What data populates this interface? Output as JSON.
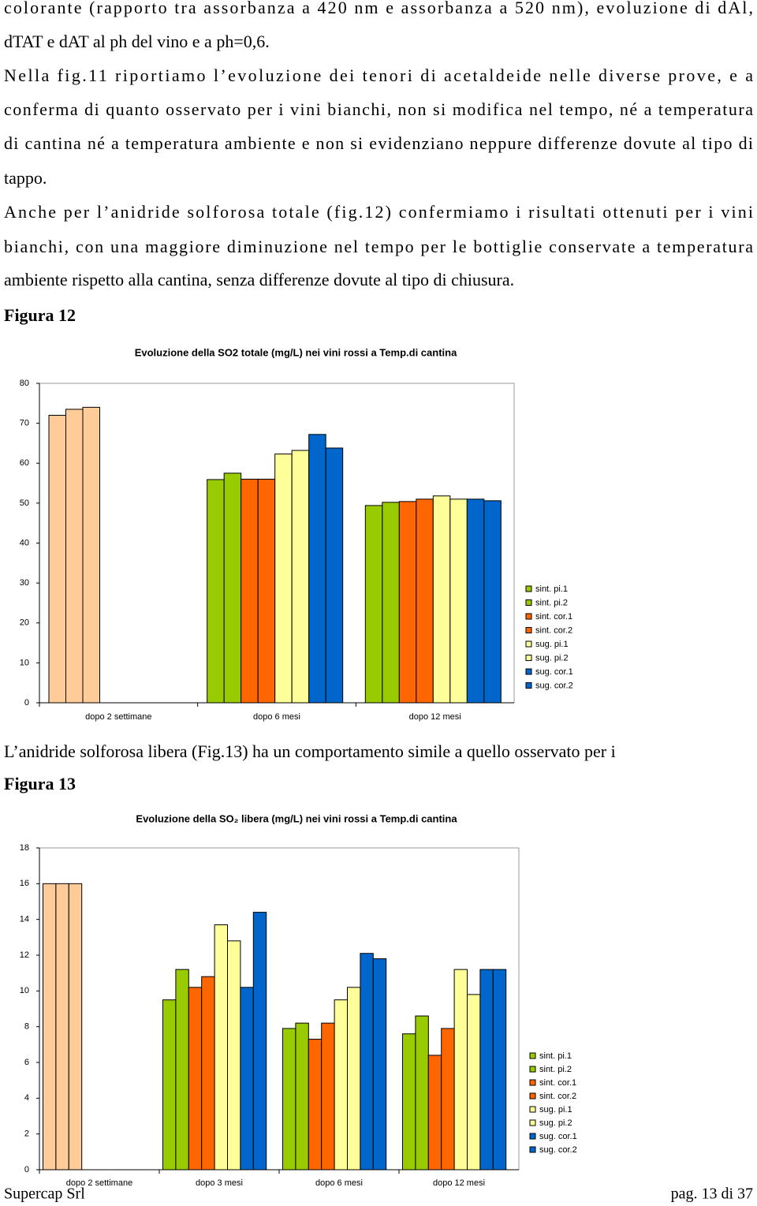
{
  "paragraphs": [
    [
      "colorante (rapporto tra assorbanza a 420 nm e assorbanza a 520 nm), evoluzione di dAl,",
      "dTAT e dAT al ph del vino e a ph=0,6."
    ],
    [
      "Nella fig.11 riportiamo l’evoluzione dei tenori di acetaldeide nelle diverse prove, e a",
      "conferma di quanto osservato per i vini bianchi, non si modifica nel tempo, né a temperatura",
      "di cantina né a temperatura ambiente e non si evidenziano neppure differenze dovute al tipo di",
      "tappo."
    ],
    [
      "Anche per l’anidride solforosa totale (fig.12) confermiamo i risultati ottenuti per i vini",
      "bianchi, con una maggiore diminuzione nel tempo per le bottiglie conservate a temperatura",
      "ambiente rispetto alla cantina, senza differenze dovute al tipo di chiusura."
    ]
  ],
  "figure12_label": "Figura 12",
  "paragraph_after": "L’anidride solforosa libera (Fig.13) ha un comportamento simile a quello osservato per i",
  "figure13_label": "Figura 13",
  "footer": {
    "left": "Supercap Srl",
    "right": "pag. 13 di 37"
  },
  "chart_data": [
    {
      "type": "bar",
      "title": "Evoluzione della SO2 totale (mg/L)  nei vini rossi a Temp.di cantina",
      "categories": [
        "dopo 2 settimane",
        "dopo 6 mesi",
        "dopo 12 mesi"
      ],
      "category_colors": [
        "#ffcc99",
        null,
        null
      ],
      "ylim": [
        0,
        80
      ],
      "yticks": [
        0,
        10,
        20,
        30,
        40,
        50,
        60,
        70,
        80
      ],
      "series": [
        {
          "name": "sint. pi.1",
          "color": "#99cc00",
          "values": [
            72,
            55.9,
            49.4
          ]
        },
        {
          "name": "sint. pi.2",
          "color": "#99cc00",
          "values": [
            73.5,
            57.5,
            50.2
          ]
        },
        {
          "name": "sint. cor.1",
          "color": "#ff6600",
          "values": [
            74,
            56,
            50.4
          ]
        },
        {
          "name": "sint. cor.2",
          "color": "#ff6600",
          "values": [
            null,
            56,
            51
          ]
        },
        {
          "name": "sug. pi.1",
          "color": "#ffff99",
          "values": [
            null,
            62.3,
            51.8
          ]
        },
        {
          "name": "sug. pi.2",
          "color": "#ffff99",
          "values": [
            null,
            63.2,
            51
          ]
        },
        {
          "name": "sug. cor.1",
          "color": "#0066cc",
          "values": [
            null,
            67.2,
            51
          ]
        },
        {
          "name": "sug. cor.2",
          "color": "#0066cc",
          "values": [
            null,
            63.8,
            50.6
          ]
        }
      ]
    },
    {
      "type": "bar",
      "title": "Evoluzione della SO₂ libera (mg/L)  nei vini rossi a Temp.di cantina",
      "categories": [
        "dopo 2 settimane",
        "dopo 3 mesi",
        "dopo 6 mesi",
        "dopo 12 mesi"
      ],
      "category_colors": [
        "#ffcc99",
        null,
        null,
        null
      ],
      "ylim": [
        0,
        18
      ],
      "yticks": [
        0,
        2,
        4,
        6,
        8,
        10,
        12,
        14,
        16,
        18
      ],
      "series": [
        {
          "name": "sint. pi.1",
          "color": "#99cc00",
          "values": [
            16,
            9.5,
            7.9,
            7.6
          ]
        },
        {
          "name": "sint. pi.2",
          "color": "#99cc00",
          "values": [
            16,
            11.2,
            8.2,
            8.6
          ]
        },
        {
          "name": "sint. cor.1",
          "color": "#ff6600",
          "values": [
            16,
            10.2,
            7.3,
            6.4
          ]
        },
        {
          "name": "sint. cor.2",
          "color": "#ff6600",
          "values": [
            null,
            10.8,
            8.2,
            7.9
          ]
        },
        {
          "name": "sug. pi.1",
          "color": "#ffff99",
          "values": [
            null,
            13.7,
            9.5,
            11.2
          ]
        },
        {
          "name": "sug. pi.2",
          "color": "#ffff99",
          "values": [
            null,
            12.8,
            10.2,
            9.8
          ]
        },
        {
          "name": "sug. cor.1",
          "color": "#0066cc",
          "values": [
            null,
            10.2,
            12.1,
            11.2
          ]
        },
        {
          "name": "sug. cor.2",
          "color": "#0066cc",
          "values": [
            null,
            14.4,
            11.8,
            11.2
          ]
        }
      ]
    }
  ]
}
